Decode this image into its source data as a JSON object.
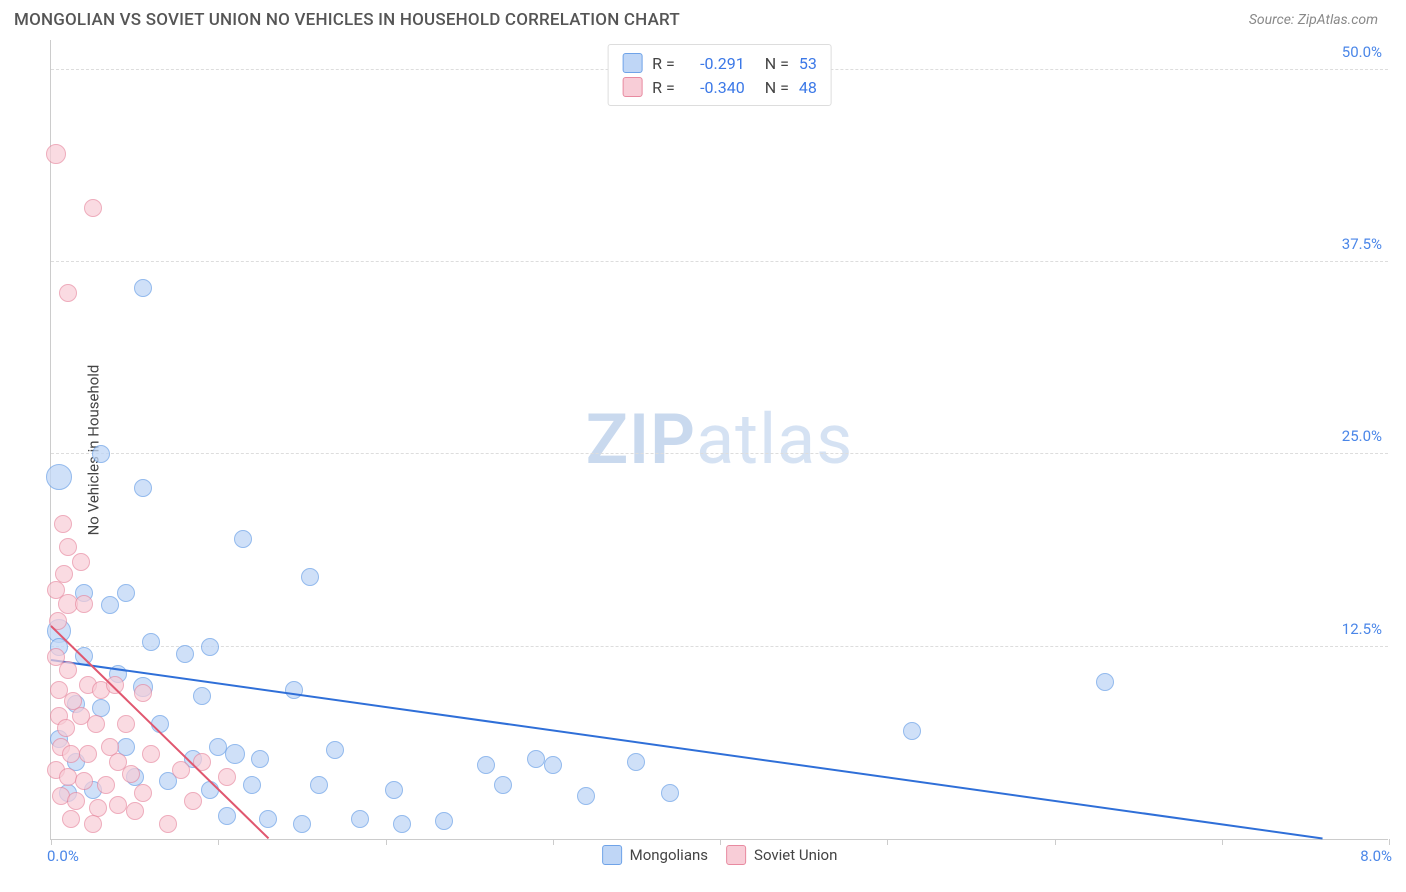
{
  "title": "MONGOLIAN VS SOVIET UNION NO VEHICLES IN HOUSEHOLD CORRELATION CHART",
  "source_label": "Source: ZipAtlas.com",
  "watermark": {
    "part1": "ZIP",
    "part2": "atlas",
    "color1": "#c9d9ee",
    "color2": "#d5e2f3"
  },
  "chart": {
    "type": "scatter",
    "ylabel": "No Vehicles in Household",
    "xlim": [
      0.0,
      8.0
    ],
    "ylim": [
      0.0,
      52.0
    ],
    "x_ticks": [
      0.0,
      1.0,
      2.0,
      3.0,
      4.0,
      5.0,
      6.0,
      7.0,
      8.0
    ],
    "x_min_label": "0.0%",
    "x_max_label": "8.0%",
    "y_gridlines": [
      {
        "y": 12.5,
        "label": "12.5%"
      },
      {
        "y": 25.0,
        "label": "25.0%"
      },
      {
        "y": 37.5,
        "label": "37.5%"
      },
      {
        "y": 50.0,
        "label": "50.0%"
      }
    ],
    "y_label_color": "#4a86e8",
    "grid_color": "#dddddd",
    "axis_color": "#cccccc",
    "background_color": "#ffffff",
    "legend_top": {
      "rows": [
        {
          "swatch_fill": "#bfd6f6",
          "swatch_border": "#6fa3e8",
          "r_label": "R =",
          "r_value": "-0.291",
          "n_label": "N =",
          "n_value": "53"
        },
        {
          "swatch_fill": "#f8cdd7",
          "swatch_border": "#e88aa0",
          "r_label": "R =",
          "r_value": "-0.340",
          "n_label": "N =",
          "n_value": "48"
        }
      ],
      "value_color": "#3b78e7",
      "label_color": "#444444"
    },
    "legend_bottom": [
      {
        "swatch_fill": "#bfd6f6",
        "swatch_border": "#6fa3e8",
        "label": "Mongolians"
      },
      {
        "swatch_fill": "#f8cdd7",
        "swatch_border": "#e88aa0",
        "label": "Soviet Union"
      }
    ],
    "series": [
      {
        "name": "Mongolians",
        "marker_fill": "#bfd6f6",
        "marker_border": "#6fa3e8",
        "marker_opacity": 0.75,
        "marker_radius": 9,
        "points": [
          [
            0.05,
            23.5,
            13
          ],
          [
            0.05,
            13.5,
            12
          ],
          [
            0.05,
            12.5,
            9
          ],
          [
            0.55,
            35.8,
            9
          ],
          [
            0.3,
            25.0,
            9
          ],
          [
            0.55,
            22.8,
            9
          ],
          [
            0.35,
            15.2,
            9
          ],
          [
            0.2,
            16.0,
            9
          ],
          [
            0.45,
            16.0,
            9
          ],
          [
            0.15,
            8.8,
            9
          ],
          [
            0.3,
            8.5,
            9
          ],
          [
            0.55,
            9.9,
            10
          ],
          [
            0.8,
            12.0,
            9
          ],
          [
            0.95,
            12.5,
            9
          ],
          [
            0.65,
            7.5,
            9
          ],
          [
            0.45,
            6.0,
            9
          ],
          [
            0.15,
            5.0,
            9
          ],
          [
            0.25,
            3.2,
            9
          ],
          [
            0.5,
            4.0,
            9
          ],
          [
            0.7,
            3.8,
            9
          ],
          [
            0.9,
            9.3,
            9
          ],
          [
            1.0,
            6.0,
            9
          ],
          [
            1.1,
            5.5,
            10
          ],
          [
            1.2,
            3.5,
            9
          ],
          [
            1.25,
            5.2,
            9
          ],
          [
            1.05,
            1.5,
            9
          ],
          [
            1.3,
            1.3,
            9
          ],
          [
            1.5,
            1.0,
            9
          ],
          [
            1.15,
            19.5,
            9
          ],
          [
            1.55,
            17.0,
            9
          ],
          [
            1.45,
            9.7,
            9
          ],
          [
            1.7,
            5.8,
            9
          ],
          [
            1.85,
            1.3,
            9
          ],
          [
            2.05,
            3.2,
            9
          ],
          [
            2.1,
            1.0,
            9
          ],
          [
            2.35,
            1.2,
            9
          ],
          [
            2.6,
            4.8,
            9
          ],
          [
            2.7,
            3.5,
            9
          ],
          [
            2.9,
            5.2,
            9
          ],
          [
            3.0,
            4.8,
            9
          ],
          [
            3.2,
            2.8,
            9
          ],
          [
            3.7,
            3.0,
            9
          ],
          [
            3.5,
            5.0,
            9
          ],
          [
            5.15,
            7.0,
            9
          ],
          [
            6.3,
            10.2,
            9
          ],
          [
            0.85,
            5.2,
            9
          ],
          [
            0.4,
            10.7,
            9
          ],
          [
            0.2,
            11.9,
            9
          ],
          [
            0.6,
            12.8,
            9
          ],
          [
            0.05,
            6.5,
            9
          ],
          [
            0.1,
            3.0,
            9
          ],
          [
            1.6,
            3.5,
            9
          ],
          [
            0.95,
            3.2,
            9
          ]
        ],
        "trend": {
          "x1": 0.0,
          "y1": 11.6,
          "x2": 7.6,
          "y2": 0.0,
          "color": "#2f6fd8",
          "width": 2
        }
      },
      {
        "name": "Soviet Union",
        "marker_fill": "#f8cdd7",
        "marker_border": "#e88aa0",
        "marker_opacity": 0.7,
        "marker_radius": 9,
        "points": [
          [
            0.03,
            44.5,
            10
          ],
          [
            0.25,
            41.0,
            9
          ],
          [
            0.1,
            35.5,
            9
          ],
          [
            0.07,
            20.5,
            9
          ],
          [
            0.1,
            19.0,
            9
          ],
          [
            0.18,
            18.0,
            9
          ],
          [
            0.08,
            17.2,
            9
          ],
          [
            0.03,
            16.2,
            9
          ],
          [
            0.1,
            15.3,
            10
          ],
          [
            0.2,
            15.3,
            9
          ],
          [
            0.04,
            14.2,
            9
          ],
          [
            0.03,
            11.8,
            9
          ],
          [
            0.1,
            11.0,
            9
          ],
          [
            0.22,
            10.0,
            9
          ],
          [
            0.05,
            9.7,
            9
          ],
          [
            0.13,
            9.0,
            9
          ],
          [
            0.3,
            9.7,
            9
          ],
          [
            0.05,
            8.0,
            9
          ],
          [
            0.18,
            8.0,
            9
          ],
          [
            0.09,
            7.2,
            9
          ],
          [
            0.27,
            7.5,
            9
          ],
          [
            0.38,
            10.0,
            9
          ],
          [
            0.06,
            6.0,
            9
          ],
          [
            0.12,
            5.5,
            9
          ],
          [
            0.22,
            5.5,
            9
          ],
          [
            0.35,
            6.0,
            9
          ],
          [
            0.03,
            4.5,
            9
          ],
          [
            0.1,
            4.0,
            9
          ],
          [
            0.2,
            3.8,
            9
          ],
          [
            0.33,
            3.5,
            9
          ],
          [
            0.4,
            5.0,
            9
          ],
          [
            0.48,
            4.2,
            9
          ],
          [
            0.06,
            2.8,
            9
          ],
          [
            0.15,
            2.5,
            9
          ],
          [
            0.28,
            2.0,
            9
          ],
          [
            0.4,
            2.2,
            9
          ],
          [
            0.12,
            1.3,
            9
          ],
          [
            0.25,
            1.0,
            9
          ],
          [
            0.5,
            1.8,
            9
          ],
          [
            0.55,
            3.0,
            9
          ],
          [
            0.6,
            5.5,
            9
          ],
          [
            0.7,
            1.0,
            9
          ],
          [
            0.78,
            4.5,
            9
          ],
          [
            0.85,
            2.5,
            9
          ],
          [
            0.9,
            5.0,
            9
          ],
          [
            1.05,
            4.0,
            9
          ],
          [
            0.55,
            9.5,
            9
          ],
          [
            0.45,
            7.5,
            9
          ]
        ],
        "trend": {
          "x1": 0.0,
          "y1": 13.8,
          "x2": 1.3,
          "y2": 0.0,
          "color": "#e0576f",
          "width": 2
        }
      }
    ]
  }
}
